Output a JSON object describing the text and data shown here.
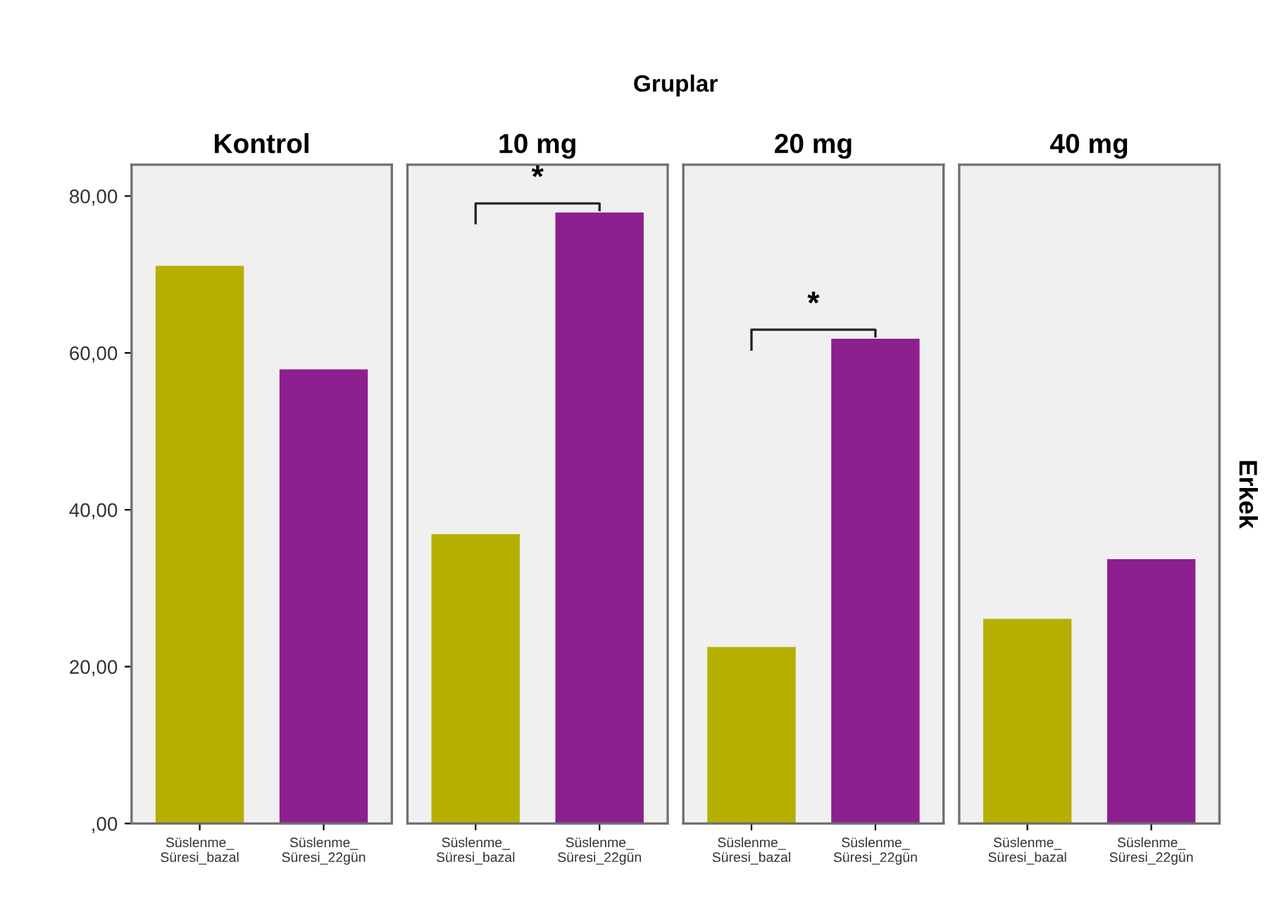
{
  "chart_data": [
    {
      "type": "bar",
      "title": "Kontrol",
      "categories": [
        "Süslenme_\nSüresi_bazal",
        "Süslenme_\nSüresi_22gün"
      ],
      "values": [
        71.0,
        57.8
      ],
      "colors": [
        "#b5b000",
        "#8e1f8e"
      ],
      "ylim": [
        0,
        84
      ],
      "yticks": [
        {
          "value": 0,
          "label": ",00"
        },
        {
          "value": 20,
          "label": "20,00"
        },
        {
          "value": 40,
          "label": "40,00"
        },
        {
          "value": 60,
          "label": "60,00"
        },
        {
          "value": 80,
          "label": "80,00"
        }
      ],
      "annotations": [
        "Gruplar"
      ]
    },
    {
      "type": "bar",
      "title": "10 mg",
      "categories": [
        "Süslenme_\nSüresi_bazal",
        "Süslenme_\nSüresi_22gün"
      ],
      "values": [
        36.8,
        77.8
      ],
      "colors": [
        "#b5b000",
        "#8e1f8e"
      ],
      "ylim": [
        0,
        84
      ],
      "tick_labels": "x",
      "annotations": [
        "*"
      ]
    },
    {
      "type": "bar",
      "title": "20 mg",
      "categories": [
        "Süslenme_\nSüresi_bazal",
        "Süslenme_\nSüresi_22gün"
      ],
      "values": [
        22.4,
        61.7
      ],
      "colors": [
        "#b5b000",
        "#8e1f8e"
      ],
      "ylim": [
        0,
        84
      ],
      "tick_labels": "x",
      "annotations": [
        "*"
      ]
    },
    {
      "type": "bar",
      "title": "40 mg",
      "categories": [
        "Süslenme_\nSüresi_bazal",
        "Süslenme_\nSüresi_22gün"
      ],
      "values": [
        26.0,
        33.6
      ],
      "colors": [
        "#b5b000",
        "#8e1f8e"
      ],
      "ylim": [
        0,
        84
      ],
      "tick_labels": "x",
      "annotations": [
        "Erkek"
      ]
    }
  ]
}
